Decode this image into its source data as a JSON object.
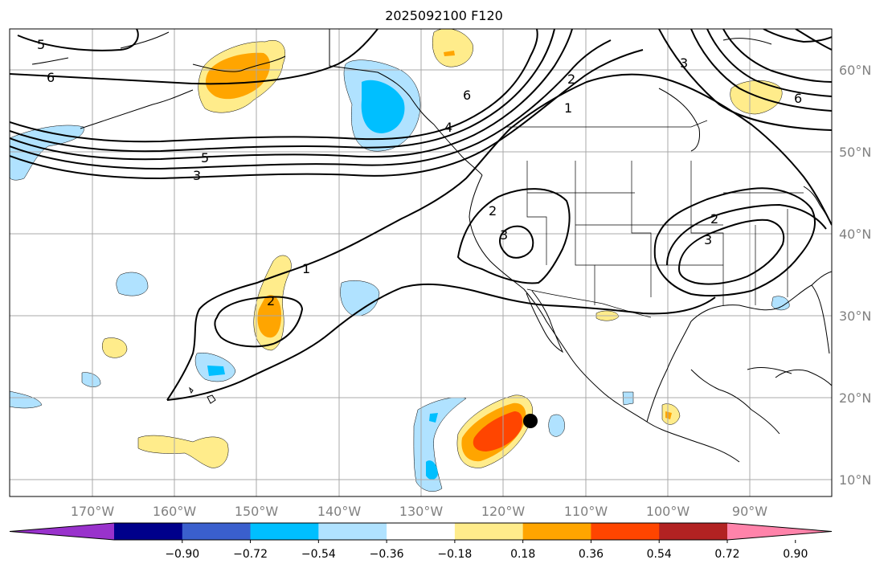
{
  "title": "2025092100 F120",
  "lat_labels": [
    "60°N",
    "50°N",
    "40°N",
    "30°N",
    "20°N",
    "10°N"
  ],
  "lon_labels": [
    "170°W",
    "160°W",
    "150°W",
    "140°W",
    "130°W",
    "120°W",
    "110°W",
    "100°W",
    "90°W"
  ],
  "colorbar": {
    "ticks": [
      "−0.90",
      "−0.72",
      "−0.54",
      "−0.36",
      "−0.18",
      "0.18",
      "0.36",
      "0.54",
      "0.72",
      "0.90"
    ],
    "colors": [
      "#9932cc",
      "#00008b",
      "#3a5fcd",
      "#00bfff",
      "#b0e2ff",
      "#ffffff",
      "#ffec8b",
      "#ffa500",
      "#ff4500",
      "#b22222",
      "#ff83aa"
    ]
  },
  "contour_labels": [
    "5",
    "6",
    "5",
    "3",
    "6",
    "4",
    "2",
    "1",
    "3",
    "6",
    "2",
    "3",
    "2",
    "3",
    "1",
    "2"
  ],
  "colors": {
    "light_blue": "#b0e2ff",
    "deep_sky_blue": "#00bfff",
    "light_yellow": "#ffec8b",
    "orange": "#ffa500",
    "orange_red": "#ff4500"
  },
  "markers": [
    {
      "name": "black-dot",
      "lon": -116.5,
      "lat": 17.5
    }
  ]
}
